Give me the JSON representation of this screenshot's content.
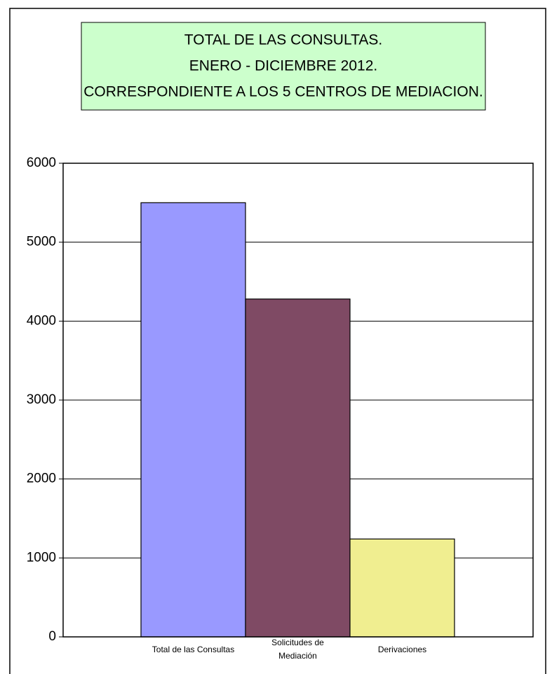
{
  "chart_data": {
    "type": "bar",
    "title": [
      "TOTAL DE LAS CONSULTAS.",
      "ENERO - DICIEMBRE 2012.",
      "CORRESPONDIENTE A LOS 5 CENTROS DE MEDIACION."
    ],
    "categories": [
      "Total de las Consultas",
      "Solicitudes de Mediación",
      "Derivaciones"
    ],
    "values": [
      5500,
      4280,
      1240
    ],
    "colors": [
      "#9999ff",
      "#7f4a64",
      "#f0ee90"
    ],
    "ylim": [
      0,
      6000
    ],
    "yticks": [
      0,
      1000,
      2000,
      3000,
      4000,
      5000,
      6000
    ],
    "grid": true
  }
}
